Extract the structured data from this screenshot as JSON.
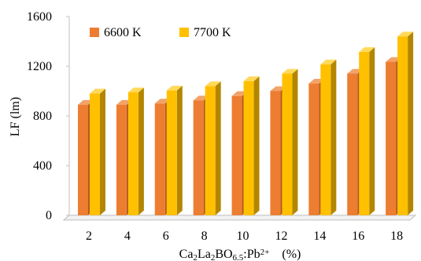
{
  "chart_data": {
    "type": "bar",
    "style": "3d-clustered-column",
    "categories": [
      "2",
      "4",
      "6",
      "8",
      "10",
      "12",
      "14",
      "16",
      "18"
    ],
    "series": [
      {
        "name": "6600 K",
        "color": "#ED7D31",
        "side_color": "#B45A1E",
        "top_color": "#F2A36A",
        "values": [
          890,
          890,
          900,
          925,
          960,
          1000,
          1060,
          1140,
          1235
        ]
      },
      {
        "name": "7700 K",
        "color": "#FFC000",
        "side_color": "#B38600",
        "top_color": "#FFD95A",
        "values": [
          980,
          990,
          1005,
          1040,
          1080,
          1140,
          1215,
          1315,
          1440
        ]
      }
    ],
    "y_ticks": [
      "0",
      "400",
      "800",
      "1200",
      "1600"
    ],
    "ylim": [
      0,
      1600
    ],
    "ylabel": "LF (lm)",
    "xlabel": {
      "parts": [
        {
          "text": "Ca",
          "shift": "none"
        },
        {
          "text": "2",
          "shift": "sub"
        },
        {
          "text": "La",
          "shift": "none"
        },
        {
          "text": "2",
          "shift": "sub"
        },
        {
          "text": "BO",
          "shift": "none"
        },
        {
          "text": "6.5",
          "shift": "sub"
        },
        {
          "text": ":Pb",
          "shift": "none"
        },
        {
          "text": "2+",
          "shift": "super"
        },
        {
          "text": "    (%)",
          "shift": "none"
        }
      ]
    },
    "legend_position": "top-left",
    "grid": false
  }
}
